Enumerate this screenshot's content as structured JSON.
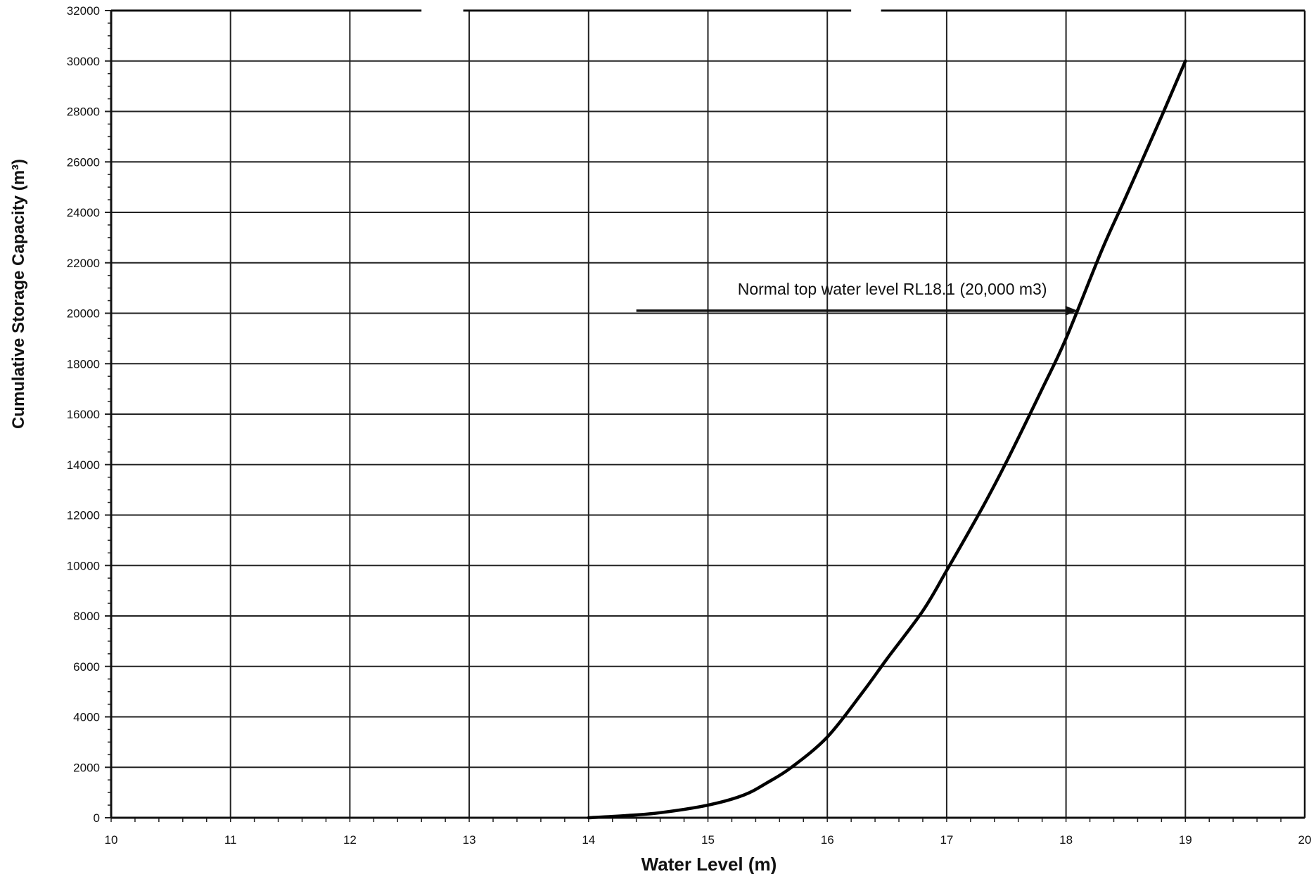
{
  "chart_data": {
    "type": "line",
    "xlabel": "Water Level (m)",
    "ylabel": "Cumulative Storage Capacity (m³)",
    "xlim": [
      10,
      20
    ],
    "ylim": [
      0,
      32000
    ],
    "x_ticks": [
      10,
      11,
      12,
      13,
      14,
      15,
      16,
      17,
      18,
      19,
      20
    ],
    "y_ticks": [
      0,
      2000,
      4000,
      6000,
      8000,
      10000,
      12000,
      14000,
      16000,
      18000,
      20000,
      22000,
      24000,
      26000,
      28000,
      30000,
      32000
    ],
    "grid": true,
    "series": [
      {
        "color": "#000000",
        "x": [
          14.0,
          14.3,
          14.6,
          15.0,
          15.3,
          15.5,
          15.7,
          16.0,
          16.3,
          16.5,
          16.8,
          17.0,
          17.3,
          17.5,
          17.8,
          18.0,
          18.3,
          18.5,
          18.8,
          19.0
        ],
        "y": [
          0,
          80,
          200,
          500,
          900,
          1400,
          2000,
          3200,
          5000,
          6300,
          8200,
          9800,
          12300,
          14100,
          17000,
          19000,
          22500,
          24600,
          27800,
          30000
        ]
      }
    ],
    "annotations": [
      {
        "text": "Normal top water level RL18.1 (20,000 m3)",
        "arrow_from": [
          14.4,
          20100
        ],
        "arrow_to": [
          18.1,
          20100
        ]
      }
    ]
  }
}
